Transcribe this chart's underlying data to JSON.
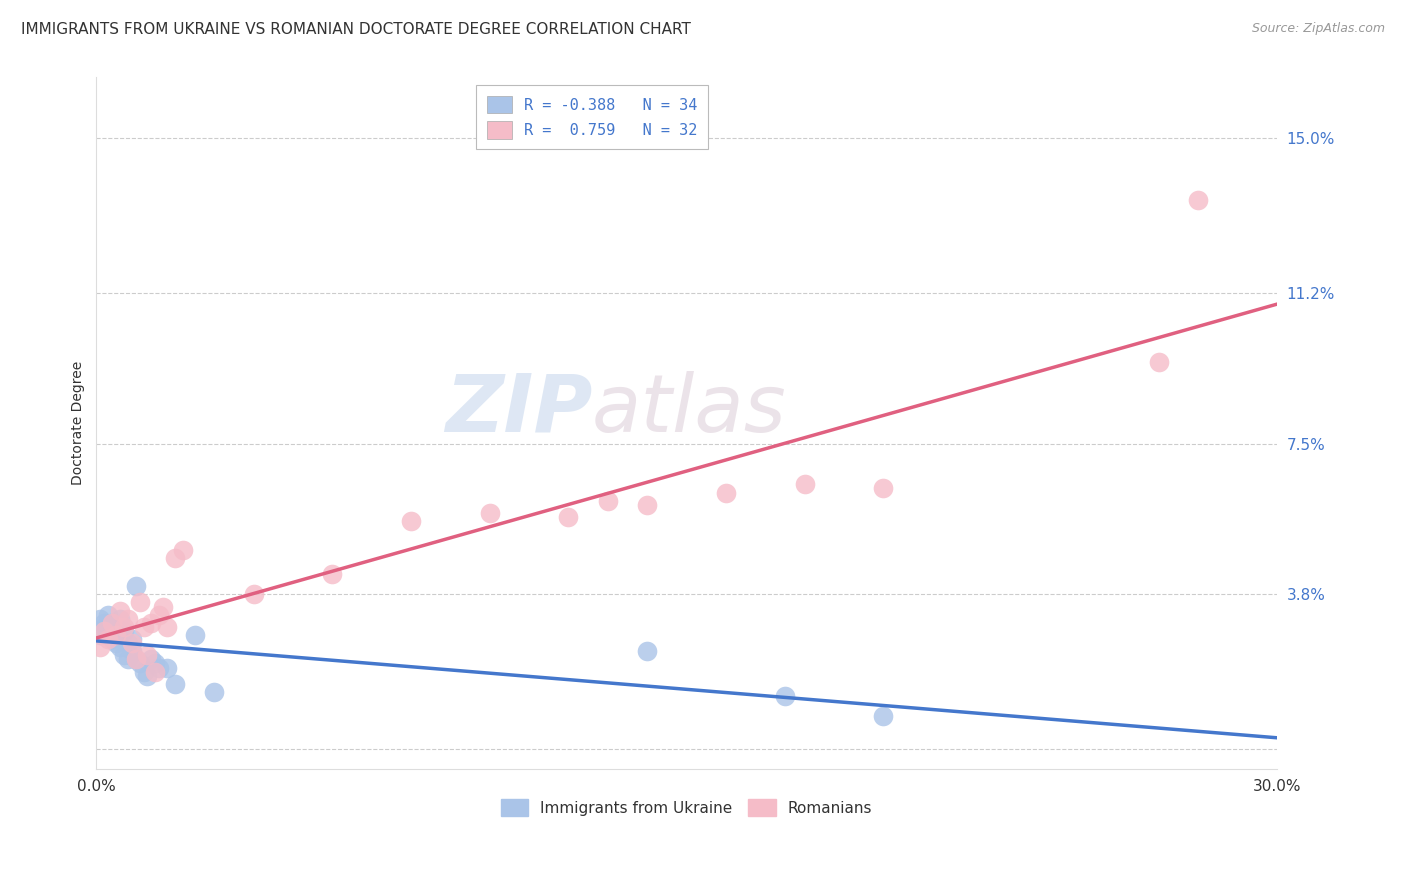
{
  "title": "IMMIGRANTS FROM UKRAINE VS ROMANIAN DOCTORATE DEGREE CORRELATION CHART",
  "source": "Source: ZipAtlas.com",
  "ylabel": "Doctorate Degree",
  "xlim": [
    0.0,
    0.3
  ],
  "ylim": [
    -0.005,
    0.165
  ],
  "ytick_vals": [
    0.0,
    0.038,
    0.075,
    0.112,
    0.15
  ],
  "ytick_labels": [
    "",
    "3.8%",
    "7.5%",
    "11.2%",
    "15.0%"
  ],
  "xtick_vals": [
    0.0,
    0.3
  ],
  "xtick_labels": [
    "0.0%",
    "30.0%"
  ],
  "grid_color": "#cccccc",
  "background_color": "#ffffff",
  "ukraine_color": "#aac4e8",
  "romania_color": "#f5bcc8",
  "ukraine_line_color": "#4477cc",
  "romania_line_color": "#e06080",
  "tick_label_color": "#4477cc",
  "ukraine_R": -0.388,
  "ukraine_N": 34,
  "romania_R": 0.759,
  "romania_N": 32,
  "legend_label_ukraine": "Immigrants from Ukraine",
  "legend_label_romania": "Romanians",
  "watermark_zip": "ZIP",
  "watermark_atlas": "atlas",
  "title_fontsize": 11,
  "label_fontsize": 10,
  "tick_fontsize": 11,
  "ukraine_x": [
    0.001,
    0.001,
    0.002,
    0.002,
    0.003,
    0.003,
    0.004,
    0.004,
    0.005,
    0.005,
    0.005,
    0.006,
    0.006,
    0.007,
    0.007,
    0.008,
    0.008,
    0.009,
    0.009,
    0.01,
    0.01,
    0.011,
    0.012,
    0.013,
    0.014,
    0.015,
    0.016,
    0.018,
    0.02,
    0.025,
    0.03,
    0.14,
    0.175,
    0.2
  ],
  "ukraine_y": [
    0.032,
    0.028,
    0.031,
    0.03,
    0.029,
    0.033,
    0.027,
    0.031,
    0.026,
    0.03,
    0.028,
    0.025,
    0.032,
    0.029,
    0.023,
    0.026,
    0.022,
    0.024,
    0.027,
    0.04,
    0.022,
    0.021,
    0.019,
    0.018,
    0.022,
    0.021,
    0.02,
    0.02,
    0.016,
    0.028,
    0.014,
    0.024,
    0.013,
    0.008
  ],
  "romania_x": [
    0.001,
    0.002,
    0.003,
    0.004,
    0.005,
    0.006,
    0.007,
    0.008,
    0.009,
    0.01,
    0.011,
    0.012,
    0.013,
    0.014,
    0.015,
    0.016,
    0.017,
    0.018,
    0.02,
    0.022,
    0.04,
    0.06,
    0.08,
    0.1,
    0.12,
    0.13,
    0.14,
    0.16,
    0.18,
    0.2,
    0.27,
    0.28
  ],
  "romania_y": [
    0.025,
    0.029,
    0.027,
    0.031,
    0.028,
    0.034,
    0.03,
    0.032,
    0.026,
    0.022,
    0.036,
    0.03,
    0.023,
    0.031,
    0.019,
    0.033,
    0.035,
    0.03,
    0.047,
    0.049,
    0.038,
    0.043,
    0.056,
    0.058,
    0.057,
    0.061,
    0.06,
    0.063,
    0.065,
    0.064,
    0.095,
    0.135
  ]
}
